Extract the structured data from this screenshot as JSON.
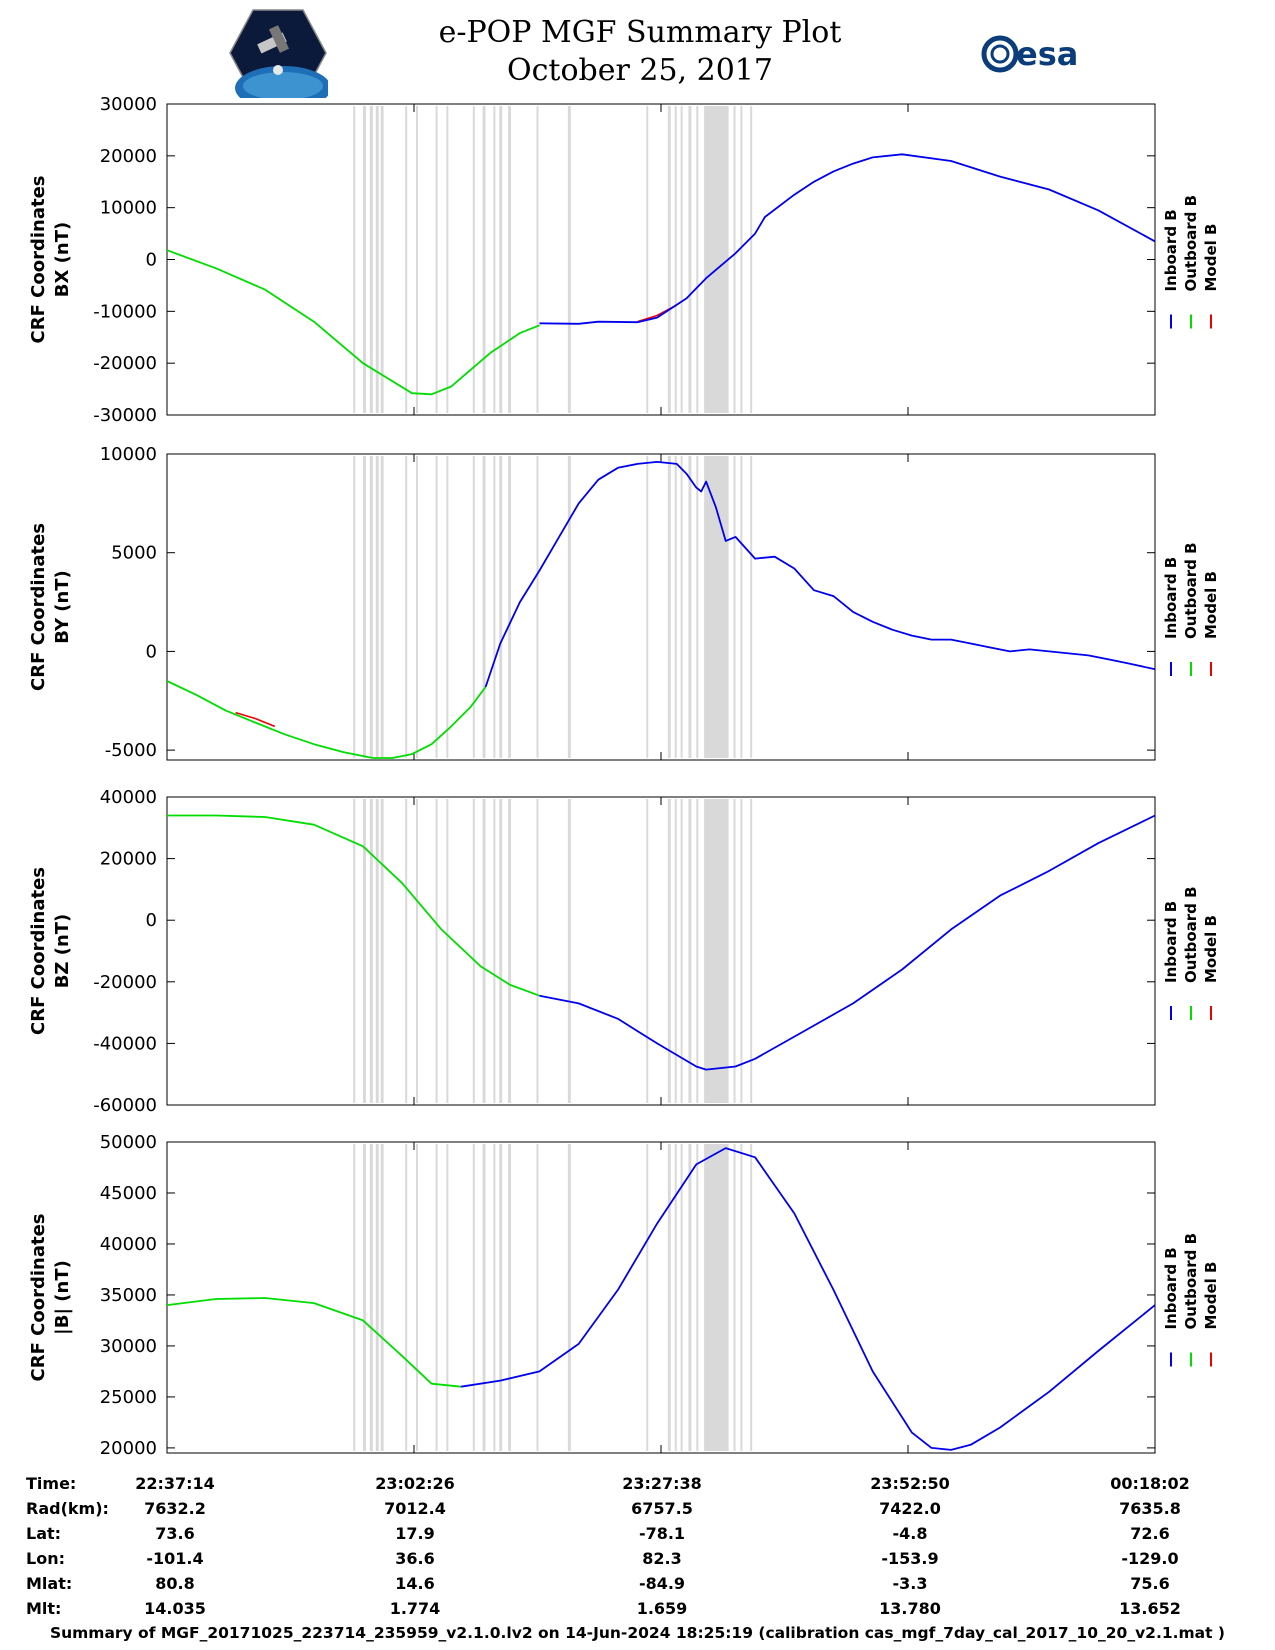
{
  "title_line1": "e-POP MGF Summary Plot",
  "title_line2": "October 25, 2017",
  "logo_esa_text": "esa",
  "logo_cassiope_text": "CASSIOPE",
  "colors": {
    "inboard": "#0000ee",
    "outboard": "#00dd00",
    "model": "#ee0000",
    "shading": "#d9d9d9"
  },
  "legend": [
    "Inboard B",
    "Outboard B",
    "Model B"
  ],
  "x_ticks": [
    "22:37:14",
    "23:02:26",
    "23:27:38",
    "23:52:50",
    "00:18:02"
  ],
  "shaded_intervals_min": [
    [
      19.0,
      19.2
    ],
    [
      20.0,
      20.3
    ],
    [
      20.7,
      21.0
    ],
    [
      21.3,
      21.6
    ],
    [
      21.8,
      22.1
    ],
    [
      24.3,
      24.5
    ],
    [
      25.4,
      25.6
    ],
    [
      27.4,
      27.6
    ],
    [
      28.5,
      28.7
    ],
    [
      31.2,
      31.4
    ],
    [
      32.2,
      32.5
    ],
    [
      33.3,
      33.5
    ],
    [
      33.9,
      34.2
    ],
    [
      34.8,
      35.1
    ],
    [
      37.7,
      37.9
    ],
    [
      40.9,
      41.2
    ],
    [
      48.9,
      49.1
    ],
    [
      51.1,
      51.4
    ],
    [
      51.8,
      52.0
    ],
    [
      52.4,
      52.6
    ],
    [
      53.2,
      53.5
    ],
    [
      54.0,
      54.2
    ],
    [
      54.8,
      57.3
    ],
    [
      57.8,
      58.0
    ],
    [
      58.5,
      58.7
    ],
    [
      59.5,
      59.7
    ]
  ],
  "chart_data": [
    {
      "type": "line",
      "ylabel": "CRF Coordinates\nBX (nT)",
      "ylabel_lines": [
        "CRF Coordinates",
        "BX (nT)"
      ],
      "ylim": [
        -30000,
        30000
      ],
      "yticks": [
        -30000,
        -20000,
        -10000,
        0,
        10000,
        20000,
        30000
      ],
      "x_unit": "minutes after 22:37:14",
      "xlim": [
        0,
        100.8
      ],
      "series": [
        {
          "name": "Outboard B",
          "x": [
            0,
            5,
            10,
            15,
            20,
            25,
            27,
            29,
            33,
            36,
            38
          ],
          "values": [
            1800,
            -1700,
            -5800,
            -12000,
            -20000,
            -25800,
            -26000,
            -24500,
            -18000,
            -14200,
            -12700
          ]
        },
        {
          "name": "Inboard B",
          "x": [
            38,
            42,
            44,
            48,
            50,
            53,
            55,
            58,
            60,
            61,
            64,
            66,
            68,
            70,
            72,
            75,
            80,
            85,
            90,
            95,
            100.8
          ],
          "values": [
            -12300,
            -12400,
            -12000,
            -12100,
            -11200,
            -7500,
            -3600,
            1200,
            5000,
            8200,
            12500,
            15000,
            17000,
            18500,
            19700,
            20300,
            19000,
            16000,
            13500,
            9500,
            3500
          ]
        },
        {
          "name": "Model B",
          "x": [
            48,
            50,
            52
          ],
          "values": [
            -12000,
            -10800,
            -8800
          ]
        }
      ]
    },
    {
      "type": "line",
      "ylabel_lines": [
        "CRF Coordinates",
        "BY (nT)"
      ],
      "ylim": [
        -5500,
        10000
      ],
      "yticks": [
        -5000,
        0,
        5000,
        10000
      ],
      "x_unit": "minutes after 22:37:14",
      "xlim": [
        0,
        100.8
      ],
      "series": [
        {
          "name": "Outboard B",
          "x": [
            0,
            3,
            6,
            9,
            12,
            15,
            18,
            21,
            23,
            25,
            27,
            29,
            31,
            32.5
          ],
          "values": [
            -1500,
            -2200,
            -3000,
            -3600,
            -4200,
            -4700,
            -5100,
            -5400,
            -5400,
            -5200,
            -4700,
            -3800,
            -2800,
            -1800
          ]
        },
        {
          "name": "Inboard B",
          "x": [
            32.5,
            34,
            36,
            38,
            40,
            42,
            44,
            46,
            48,
            50,
            52,
            53,
            54,
            54.5,
            55,
            56,
            57,
            58,
            60,
            62,
            64,
            66,
            68,
            70,
            72,
            74,
            76,
            78,
            80,
            82,
            84,
            86,
            88,
            90,
            92,
            94,
            96,
            98,
            100.8
          ],
          "values": [
            -1800,
            400,
            2500,
            4100,
            5800,
            7500,
            8700,
            9300,
            9500,
            9600,
            9500,
            9000,
            8300,
            8100,
            8600,
            7300,
            5600,
            5800,
            4700,
            4800,
            4200,
            3100,
            2800,
            2000,
            1500,
            1100,
            800,
            600,
            600,
            400,
            200,
            0,
            100,
            0,
            -100,
            -200,
            -400,
            -600,
            -900
          ]
        },
        {
          "name": "Model B",
          "x": [
            7,
            9,
            11
          ],
          "values": [
            -3100,
            -3400,
            -3800
          ]
        }
      ]
    },
    {
      "type": "line",
      "ylabel_lines": [
        "CRF Coordinates",
        "BZ (nT)"
      ],
      "ylim": [
        -60000,
        40000
      ],
      "yticks": [
        -60000,
        -40000,
        -20000,
        0,
        20000,
        40000
      ],
      "x_unit": "minutes after 22:37:14",
      "xlim": [
        0,
        100.8
      ],
      "series": [
        {
          "name": "Outboard B",
          "x": [
            0,
            5,
            10,
            15,
            20,
            24,
            28,
            32,
            35,
            38
          ],
          "values": [
            34000,
            34000,
            33500,
            31000,
            24000,
            12000,
            -3000,
            -15000,
            -21000,
            -24500
          ]
        },
        {
          "name": "Inboard B",
          "x": [
            38,
            42,
            46,
            50,
            54,
            55,
            58,
            60,
            65,
            70,
            75,
            80,
            85,
            90,
            95,
            100.8
          ],
          "values": [
            -24500,
            -27000,
            -32000,
            -40000,
            -47500,
            -48500,
            -47500,
            -45000,
            -36000,
            -27000,
            -16000,
            -3000,
            8000,
            16000,
            25000,
            34000
          ]
        },
        {
          "name": "Model B",
          "x": [],
          "values": []
        }
      ]
    },
    {
      "type": "line",
      "ylabel_lines": [
        "CRF Coordinates",
        "|B| (nT)"
      ],
      "ylim": [
        19500,
        50000
      ],
      "yticks": [
        20000,
        25000,
        30000,
        35000,
        40000,
        45000,
        50000
      ],
      "x_unit": "minutes after 22:37:14",
      "xlim": [
        0,
        100.8
      ],
      "series": [
        {
          "name": "Outboard B",
          "x": [
            0,
            5,
            10,
            15,
            20,
            24,
            27,
            30
          ],
          "values": [
            34000,
            34600,
            34700,
            34200,
            32500,
            29000,
            26300,
            26000
          ]
        },
        {
          "name": "Inboard B",
          "x": [
            30,
            34,
            38,
            42,
            46,
            50,
            54,
            57,
            60,
            64,
            68,
            72,
            76,
            78,
            80,
            82,
            85,
            90,
            95,
            100.8
          ],
          "values": [
            26000,
            26600,
            27500,
            30200,
            35500,
            42000,
            47800,
            49400,
            48500,
            43000,
            35500,
            27500,
            21500,
            20000,
            19800,
            20300,
            22000,
            25500,
            29500,
            34000
          ]
        },
        {
          "name": "Model B",
          "x": [],
          "values": []
        }
      ]
    }
  ],
  "table": {
    "row_labels": [
      "Time:",
      "Rad(km):",
      "Lat:",
      "Lon:",
      "Mlat:",
      "Mlt:"
    ],
    "columns": [
      [
        "22:37:14",
        "7632.2",
        "73.6",
        "-101.4",
        "80.8",
        "14.035"
      ],
      [
        "23:02:26",
        "7012.4",
        "17.9",
        "36.6",
        "14.6",
        "1.774"
      ],
      [
        "23:27:38",
        "6757.5",
        "-78.1",
        "82.3",
        "-84.9",
        "1.659"
      ],
      [
        "23:52:50",
        "7422.0",
        "-4.8",
        "-153.9",
        "-3.3",
        "13.780"
      ],
      [
        "00:18:02",
        "7635.8",
        "72.6",
        "-129.0",
        "75.6",
        "13.652"
      ]
    ]
  },
  "caption": "Summary of MGF_20171025_223714_235959_v2.1.0.lv2 on 14-Jun-2024 18:25:19 (calibration cas_mgf_7day_cal_2017_10_20_v2.1.mat )"
}
